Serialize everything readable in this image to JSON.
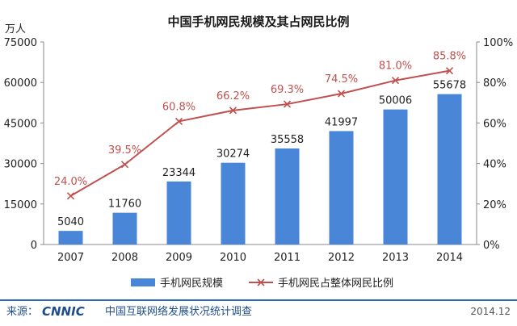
{
  "chart_data": {
    "type": "bar",
    "title": "中国手机网民规模及其占网民比例",
    "y_unit_label": "万人",
    "categories": [
      "2007",
      "2008",
      "2009",
      "2010",
      "2011",
      "2012",
      "2013",
      "2014"
    ],
    "series": [
      {
        "name": "手机网民规模",
        "type": "bar",
        "axis": "left",
        "values": [
          5040,
          11760,
          23344,
          30274,
          35558,
          41997,
          50006,
          55678
        ],
        "labels": [
          "5040",
          "11760",
          "23344",
          "30274",
          "35558",
          "41997",
          "50006",
          "55678"
        ],
        "color": "#4a86d8"
      },
      {
        "name": "手机网民占整体网民比例",
        "type": "line",
        "axis": "right",
        "values": [
          24.0,
          39.5,
          60.8,
          66.2,
          69.3,
          74.5,
          81.0,
          85.8
        ],
        "labels": [
          "24.0%",
          "39.5%",
          "60.8%",
          "66.2%",
          "69.3%",
          "74.5%",
          "81.0%",
          "85.8%"
        ],
        "color": "#c0504d"
      }
    ],
    "ylim": [
      0,
      75000
    ],
    "y_ticks": [
      "0",
      "15000",
      "30000",
      "45000",
      "60000",
      "75000"
    ],
    "ylim_right": [
      0,
      100
    ],
    "y_ticks_right": [
      "0%",
      "20%",
      "40%",
      "60%",
      "80%",
      "100%"
    ],
    "grid": false,
    "legend_position": "bottom"
  },
  "footer": {
    "source_label": "来源：",
    "logo_text": "CNNIC",
    "org_name": "中国互联网络发展状况统计调查",
    "date": "2014.12"
  },
  "colors": {
    "bar": "#4a86d8",
    "line": "#c0504d",
    "footer_bar": "#2b6cb8"
  }
}
